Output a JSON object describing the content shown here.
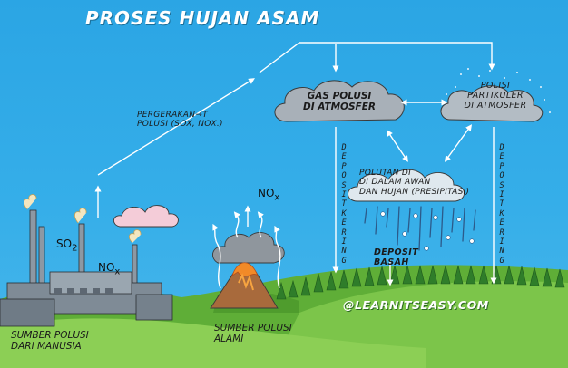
{
  "title": "PROSES HUJAN ASAM",
  "labels": {
    "movement_line1": "PERGERAKAN→T",
    "movement_line2": "POLUSI (SOx, NOx.)",
    "gas_line1": "GAS POLUSI",
    "gas_line2": "DI ATMOSFER",
    "particle_line1": "POLISI",
    "particle_line2": "PARTIKULER",
    "particle_line3": "DI ATMOSFER",
    "pollutant_line1": "POLUTAN DI",
    "pollutant_line2": "DI DALAM AWAN",
    "pollutant_line3": "DAN HUJAN (PRESIPITASI)",
    "dry_left": "DEPOSIT KERING",
    "dry_right": "DEPOSIT KERING",
    "wet_line1": "DEPOSIT",
    "wet_line2": "BASAH",
    "human_line1": "SUMBER POLUSI",
    "human_line2": "DARI MANUSIA",
    "natural_line1": "SUMBER POLUSI",
    "natural_line2": "ALAMI"
  },
  "chem": {
    "so2_base": "SO",
    "so2_sub": "2",
    "nox_factory_base": "NO",
    "nox_factory_sub": "x",
    "nox_volcano_base": "NO",
    "nox_volcano_sub": "x"
  },
  "watermark": "@LEARNITSEASY.COM",
  "colors": {
    "sky": "#2ba5e4",
    "ground": "#6dba3e",
    "cloud_pink": "#f3cbd8",
    "cloud_grey": "#9aa3ad",
    "arrow": "#ffffff",
    "lava": "#f08a2a",
    "factory": "#8c9aa6"
  },
  "icons": [
    "factory-icon",
    "volcano-icon",
    "cloud-icon",
    "rain-icon",
    "tree-icon",
    "arrow-icon"
  ]
}
